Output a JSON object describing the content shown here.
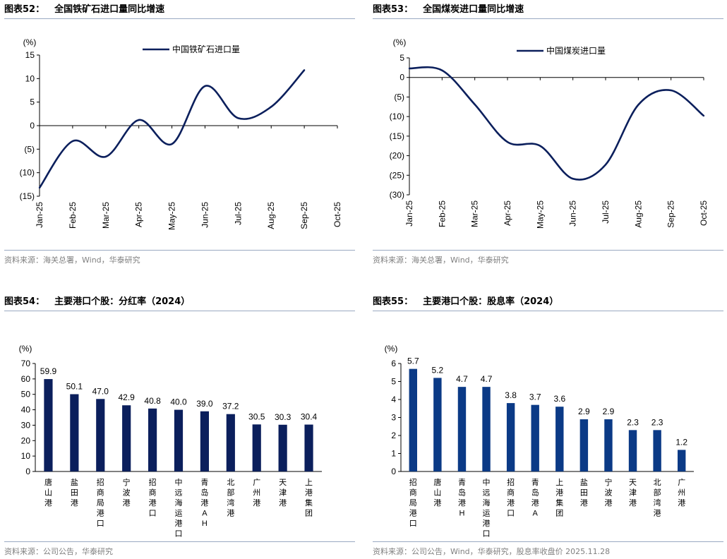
{
  "charts": [
    {
      "number": "图表52：",
      "heading": "全国铁矿石进口量同比增速",
      "source": "资料来源：海关总署，Wind，华泰研究",
      "chart_data": {
        "type": "line",
        "title": "全国铁矿石进口量同比增速",
        "unit": "(%)",
        "legend": "中国铁矿石进口量",
        "legend_position": "top-right",
        "categories": [
          "Jan-25",
          "Feb-25",
          "Mar-25",
          "Apr-25",
          "May-25",
          "Jun-25",
          "Jul-25",
          "Aug-25",
          "Sep-25",
          "Oct-25"
        ],
        "series": [
          {
            "name": "中国铁矿石进口量",
            "values": [
              -13.2,
              -3.3,
              -6.6,
              1.2,
              -3.9,
              8.4,
              1.6,
              4.0,
              11.8,
              null
            ]
          }
        ],
        "ylim": [
          -15,
          15
        ],
        "yticks": [
          15,
          10,
          5,
          0,
          -5,
          -10,
          -15
        ],
        "ytick_labels": [
          "15",
          "10",
          "5",
          "0",
          "(5)",
          "(10)",
          "(15)"
        ],
        "color": "#0b1f5c"
      }
    },
    {
      "number": "图表53：",
      "heading": "全国煤炭进口量同比增速",
      "source": "资料来源：海关总署，Wind，华泰研究",
      "chart_data": {
        "type": "line",
        "title": "全国煤炭进口量同比增速",
        "unit": "(%)",
        "legend": "中国煤炭进口量",
        "legend_position": "top-right",
        "categories": [
          "Jan-25",
          "Feb-25",
          "Mar-25",
          "Apr-25",
          "May-25",
          "Jun-25",
          "Jul-25",
          "Aug-25",
          "Sep-25",
          "Oct-25"
        ],
        "series": [
          {
            "name": "中国煤炭进口量",
            "values": [
              2.3,
              1.8,
              -6.9,
              -16.5,
              -17.5,
              -25.9,
              -22.3,
              -7.0,
              -3.3,
              -9.8
            ]
          }
        ],
        "ylim": [
          -30,
          5
        ],
        "yticks": [
          5,
          0,
          -5,
          -10,
          -15,
          -20,
          -25,
          -30
        ],
        "ytick_labels": [
          "5",
          "0",
          "(5)",
          "(10)",
          "(15)",
          "(20)",
          "(25)",
          "(30)"
        ],
        "color": "#0b1f5c"
      }
    },
    {
      "number": "图表54：",
      "heading": "主要港口个股：分红率（2024）",
      "source": "资料来源：公司公告，华泰研究",
      "chart_data": {
        "type": "bar",
        "title": "主要港口个股：分红率（2024）",
        "unit": "(%)",
        "categories": [
          "唐山港",
          "盐田港",
          "招商局港口",
          "宁波港",
          "招商港口",
          "中远海运港口",
          "青岛港AH",
          "北部湾港",
          "广州港",
          "天津港",
          "上港集团"
        ],
        "values": [
          59.9,
          50.1,
          47.0,
          42.9,
          40.8,
          40.0,
          39.0,
          37.2,
          30.5,
          30.3,
          30.4
        ],
        "value_labels": [
          "59.9",
          "50.1",
          "47.0",
          "42.9",
          "40.8",
          "40.0",
          "39.0",
          "37.2",
          "30.5",
          "30.3",
          "30.4"
        ],
        "ylim": [
          0,
          70
        ],
        "yticks": [
          70,
          60,
          50,
          40,
          30,
          20,
          10,
          0
        ],
        "ytick_labels": [
          "70",
          "60",
          "50",
          "40",
          "30",
          "20",
          "10",
          "0"
        ],
        "color": "#0b1f5c"
      }
    },
    {
      "number": "图表55：",
      "heading": "主要港口个股：股息率（2024）",
      "source": "资料来源：公司公告，Wind，华泰研究，股息率收盘价 2025.11.28",
      "chart_data": {
        "type": "bar",
        "title": "主要港口个股：股息率（2024）",
        "unit": "(%)",
        "categories": [
          "招商局港口",
          "唐山港",
          "青岛港H",
          "中远海运港口",
          "招商港口",
          "青岛港A",
          "上港集团",
          "盐田港",
          "宁波港",
          "天津港",
          "北部湾港",
          "广州港"
        ],
        "values": [
          5.7,
          5.2,
          4.7,
          4.7,
          3.8,
          3.7,
          3.6,
          2.9,
          2.9,
          2.3,
          2.3,
          1.2
        ],
        "value_labels": [
          "5.7",
          "5.2",
          "4.7",
          "4.7",
          "3.8",
          "3.7",
          "3.6",
          "2.9",
          "2.9",
          "2.3",
          "2.3",
          "1.2"
        ],
        "ylim": [
          0,
          6
        ],
        "yticks": [
          6,
          5,
          4,
          3,
          2,
          1,
          0
        ],
        "ytick_labels": [
          "6",
          "5",
          "4",
          "3",
          "2",
          "1",
          "0"
        ],
        "color": "#0b3a86"
      }
    }
  ]
}
